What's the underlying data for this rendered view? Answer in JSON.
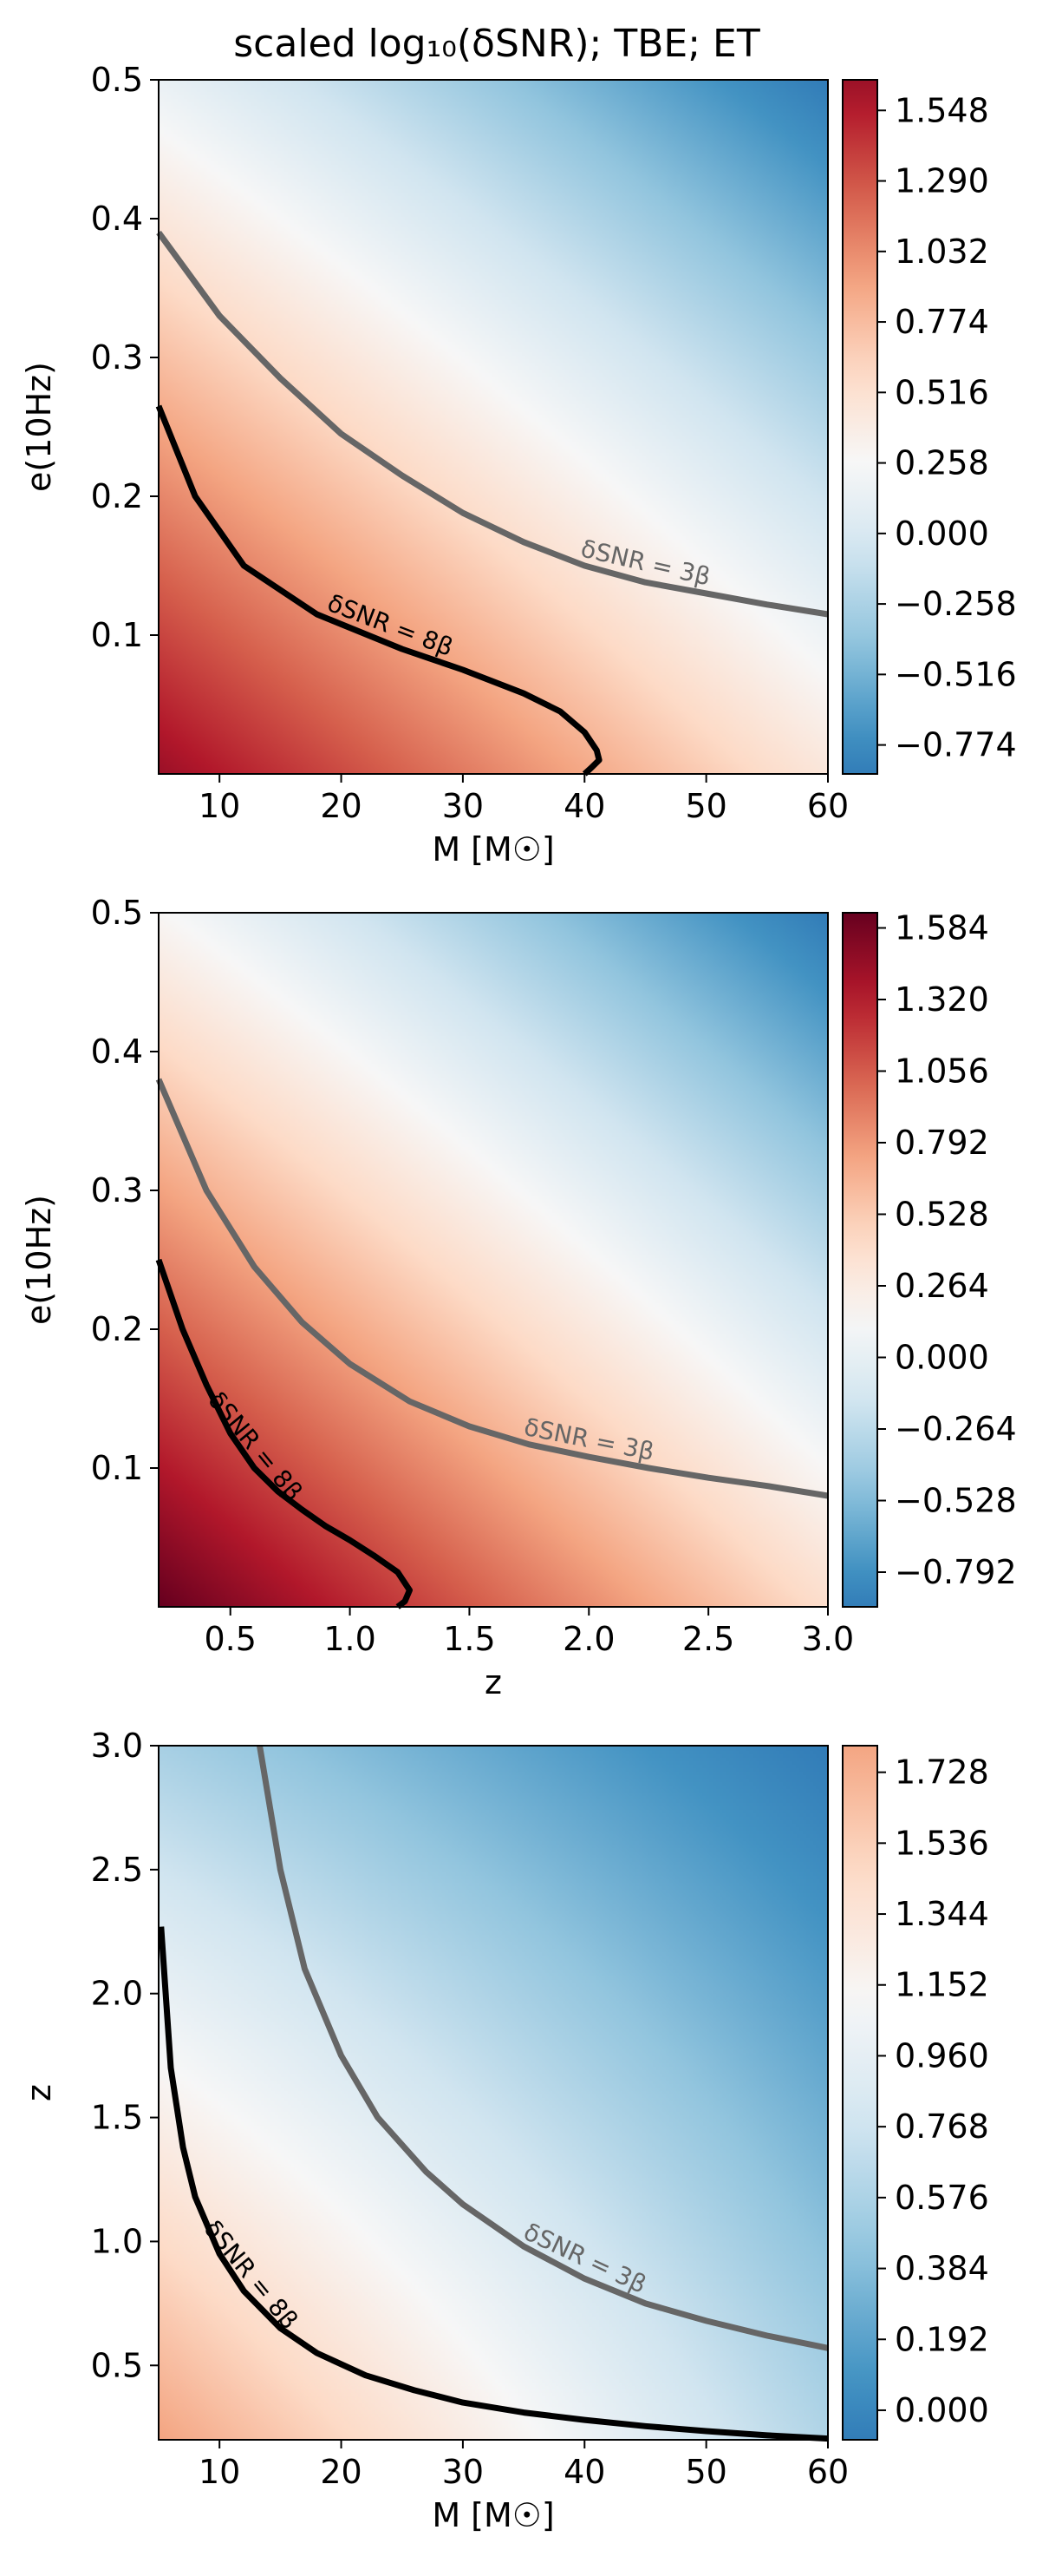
{
  "title": "scaled log₁₀(δSNR); TBE; ET",
  "colors": {
    "stops": [
      "#67001f",
      "#b2182b",
      "#d6604d",
      "#f4a582",
      "#fddbc7",
      "#f7f7f7",
      "#d1e5f0",
      "#92c5de",
      "#4393c3",
      "#2166ac",
      "#053061"
    ],
    "contour_3b": "#666666",
    "contour_8b": "#000000"
  },
  "chart_data": [
    {
      "type": "heatmap",
      "xlabel": "M [M☉]",
      "ylabel": "e(10Hz)",
      "xlim": [
        5,
        60
      ],
      "ylim": [
        0.0,
        0.5
      ],
      "xticks": [
        10,
        20,
        30,
        40,
        50,
        60
      ],
      "yticks": [
        0.1,
        0.2,
        0.3,
        0.4,
        0.5
      ],
      "colorbar_ticks": [
        "−0.774",
        "−0.516",
        "−0.258",
        "0.000",
        "0.258",
        "0.516",
        "0.774",
        "1.032",
        "1.290",
        "1.548"
      ],
      "colorbar_tick_values": [
        -0.774,
        -0.516,
        -0.258,
        0.0,
        0.258,
        0.516,
        0.774,
        1.032,
        1.29,
        1.548
      ],
      "colorbar_range": [
        -0.88,
        1.66
      ],
      "color_fraction_range": [
        0.07,
        0.85
      ],
      "field_corners": {
        "x_min_y_min": 1.66,
        "x_max_y_min": 0.45,
        "x_min_y_max": 0.15,
        "x_max_y_max": -0.88
      },
      "contours": [
        {
          "label": "δSNR = 3β",
          "color": "#666666",
          "points": [
            [
              5,
              0.39
            ],
            [
              10,
              0.33
            ],
            [
              15,
              0.285
            ],
            [
              20,
              0.245
            ],
            [
              25,
              0.215
            ],
            [
              30,
              0.188
            ],
            [
              35,
              0.167
            ],
            [
              40,
              0.15
            ],
            [
              45,
              0.138
            ],
            [
              50,
              0.13
            ],
            [
              55,
              0.122
            ],
            [
              60,
              0.115
            ]
          ]
        },
        {
          "label": "δSNR = 8β",
          "color": "#000000",
          "points": [
            [
              5,
              0.265
            ],
            [
              8,
              0.2
            ],
            [
              12,
              0.15
            ],
            [
              18,
              0.115
            ],
            [
              25,
              0.09
            ],
            [
              30,
              0.075
            ],
            [
              35,
              0.058
            ],
            [
              38,
              0.045
            ],
            [
              40,
              0.03
            ],
            [
              41,
              0.017
            ],
            [
              41.2,
              0.01
            ],
            [
              40.5,
              0.004
            ],
            [
              40,
              0.0
            ]
          ]
        }
      ]
    },
    {
      "type": "heatmap",
      "xlabel": "z",
      "ylabel": "e(10Hz)",
      "xlim": [
        0.2,
        3.0
      ],
      "ylim": [
        0.0,
        0.5
      ],
      "xticks": [
        0.5,
        1.0,
        1.5,
        2.0,
        2.5,
        3.0
      ],
      "yticks": [
        0.1,
        0.2,
        0.3,
        0.4,
        0.5
      ],
      "colorbar_ticks": [
        "−0.792",
        "−0.528",
        "−0.264",
        "0.000",
        "0.264",
        "0.528",
        "0.792",
        "1.056",
        "1.320",
        "1.584"
      ],
      "colorbar_tick_values": [
        -0.792,
        -0.528,
        -0.264,
        0.0,
        0.264,
        0.528,
        0.792,
        1.056,
        1.32,
        1.584
      ],
      "colorbar_range": [
        -0.92,
        1.64
      ],
      "color_fraction_range": [
        0.0,
        0.85
      ],
      "field_corners": {
        "x_min_y_min": 1.64,
        "x_max_y_min": 0.4,
        "x_min_y_max": 0.15,
        "x_max_y_max": -0.92
      },
      "contours": [
        {
          "label": "δSNR = 3β",
          "color": "#666666",
          "points": [
            [
              0.2,
              0.38
            ],
            [
              0.4,
              0.3
            ],
            [
              0.6,
              0.245
            ],
            [
              0.8,
              0.205
            ],
            [
              1.0,
              0.175
            ],
            [
              1.25,
              0.148
            ],
            [
              1.5,
              0.13
            ],
            [
              1.75,
              0.117
            ],
            [
              2.0,
              0.108
            ],
            [
              2.25,
              0.1
            ],
            [
              2.5,
              0.093
            ],
            [
              2.75,
              0.087
            ],
            [
              3.0,
              0.08
            ]
          ]
        },
        {
          "label": "δSNR = 8β",
          "color": "#000000",
          "points": [
            [
              0.2,
              0.25
            ],
            [
              0.3,
              0.2
            ],
            [
              0.4,
              0.16
            ],
            [
              0.5,
              0.125
            ],
            [
              0.6,
              0.1
            ],
            [
              0.7,
              0.083
            ],
            [
              0.8,
              0.07
            ],
            [
              0.9,
              0.058
            ],
            [
              1.0,
              0.048
            ],
            [
              1.1,
              0.037
            ],
            [
              1.2,
              0.025
            ],
            [
              1.25,
              0.012
            ],
            [
              1.23,
              0.004
            ],
            [
              1.2,
              0.0
            ]
          ]
        }
      ]
    },
    {
      "type": "heatmap",
      "xlabel": "M [M☉]",
      "ylabel": "z",
      "xlim": [
        5,
        60
      ],
      "ylim": [
        0.2,
        3.0
      ],
      "xticks": [
        10,
        20,
        30,
        40,
        50,
        60
      ],
      "yticks": [
        0.5,
        1.0,
        1.5,
        2.0,
        2.5,
        3.0
      ],
      "colorbar_ticks": [
        "0.000",
        "0.192",
        "0.384",
        "0.576",
        "0.768",
        "0.960",
        "1.152",
        "1.344",
        "1.536",
        "1.728"
      ],
      "colorbar_tick_values": [
        0.0,
        0.192,
        0.384,
        0.576,
        0.768,
        0.96,
        1.152,
        1.344,
        1.536,
        1.728
      ],
      "colorbar_range": [
        -0.08,
        1.8
      ],
      "color_fraction_range": [
        0.3,
        0.85
      ],
      "field_corners": {
        "x_min_y_min": 1.8,
        "x_max_y_min": 0.6,
        "x_min_y_max": 0.55,
        "x_max_y_max": -0.08
      },
      "contours": [
        {
          "label": "δSNR = 3β",
          "color": "#666666",
          "points": [
            [
              13.3,
              3.0
            ],
            [
              15,
              2.5
            ],
            [
              17,
              2.1
            ],
            [
              20,
              1.75
            ],
            [
              23,
              1.5
            ],
            [
              27,
              1.28
            ],
            [
              30,
              1.15
            ],
            [
              35,
              0.98
            ],
            [
              40,
              0.85
            ],
            [
              45,
              0.75
            ],
            [
              50,
              0.68
            ],
            [
              55,
              0.62
            ],
            [
              60,
              0.57
            ]
          ]
        },
        {
          "label": "δSNR = 8β",
          "color": "#000000",
          "points": [
            [
              5.2,
              2.27
            ],
            [
              6,
              1.7
            ],
            [
              7,
              1.38
            ],
            [
              8,
              1.18
            ],
            [
              10,
              0.95
            ],
            [
              12,
              0.8
            ],
            [
              15,
              0.65
            ],
            [
              18,
              0.55
            ],
            [
              22,
              0.46
            ],
            [
              26,
              0.4
            ],
            [
              30,
              0.35
            ],
            [
              35,
              0.31
            ],
            [
              40,
              0.28
            ],
            [
              45,
              0.255
            ],
            [
              50,
              0.235
            ],
            [
              55,
              0.218
            ],
            [
              60,
              0.205
            ]
          ]
        }
      ]
    }
  ]
}
